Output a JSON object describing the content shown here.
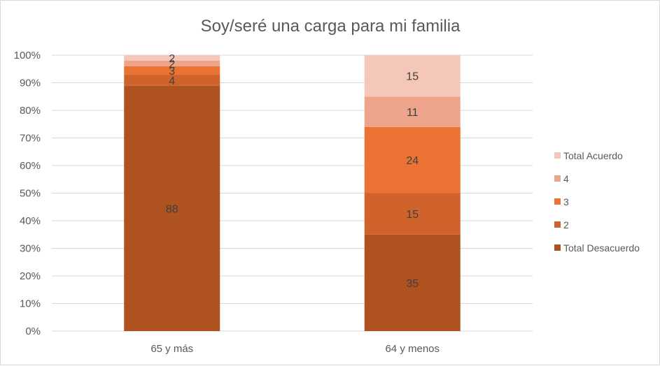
{
  "chart_data": {
    "type": "bar",
    "stacked": true,
    "percent_stacked": true,
    "title": "Soy/seré una carga para mi familia",
    "xlabel": "",
    "ylabel": "",
    "ylim": [
      0,
      100
    ],
    "y_ticks": [
      "0%",
      "10%",
      "20%",
      "30%",
      "40%",
      "50%",
      "60%",
      "70%",
      "80%",
      "90%",
      "100%"
    ],
    "categories": [
      "65 y más",
      "64 y menos"
    ],
    "series": [
      {
        "name": "Total Desacuerdo",
        "values": [
          88,
          35
        ],
        "color": "#ae5220"
      },
      {
        "name": "2",
        "values": [
          4,
          15
        ],
        "color": "#cf632b"
      },
      {
        "name": "3",
        "values": [
          3,
          24
        ],
        "color": "#ea7333"
      },
      {
        "name": "4",
        "values": [
          2,
          11
        ],
        "color": "#eea48b"
      },
      {
        "name": "Total Acuerdo",
        "values": [
          2,
          15
        ],
        "color": "#f4c7b8"
      }
    ],
    "legend_position": "right",
    "grid": true
  }
}
